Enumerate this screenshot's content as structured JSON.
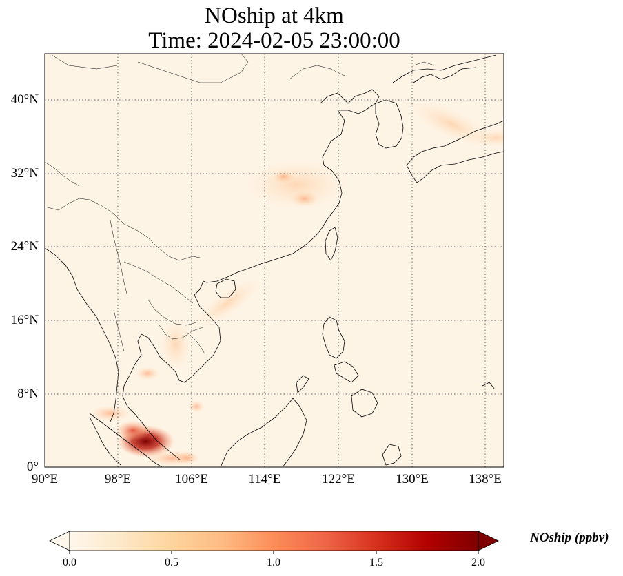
{
  "title": {
    "line1": "NOship at 4km",
    "line2": "Time: 2024-02-05 23:00:00"
  },
  "map": {
    "projection": "PlateCarree",
    "lon_range": [
      90,
      140
    ],
    "lat_range": [
      0,
      45
    ],
    "gridlines": "dotted",
    "lat_ticks": [
      "40°N",
      "32°N",
      "24°N",
      "16°N",
      "8°N",
      "0°"
    ],
    "lon_ticks": [
      "90°E",
      "98°E",
      "106°E",
      "114°E",
      "122°E",
      "130°E",
      "138°E"
    ],
    "field": "NOship",
    "colormap": "OrRd",
    "hotspots_ppbv": [
      {
        "lon": 101,
        "lat": 2.8,
        "value": 2.0
      },
      {
        "lon": 99.6,
        "lat": 4.0,
        "value": 1.0
      },
      {
        "lon": 118.3,
        "lat": 29.2,
        "value": 0.7
      },
      {
        "lon": 116.0,
        "lat": 31.6,
        "value": 0.45
      },
      {
        "lon": 101.2,
        "lat": 10.2,
        "value": 0.5
      },
      {
        "lon": 105.5,
        "lat": 1.0,
        "value": 0.5
      }
    ]
  },
  "colorbar": {
    "label": "NOship (ppbv)",
    "ticks": [
      "0.0",
      "0.5",
      "1.0",
      "1.5",
      "2.0"
    ],
    "min": 0.0,
    "max": 2.0,
    "extend": "both",
    "colors": [
      "#fff7ec",
      "#fdd49e",
      "#fc8d59",
      "#d7301f",
      "#7f0000"
    ]
  }
}
